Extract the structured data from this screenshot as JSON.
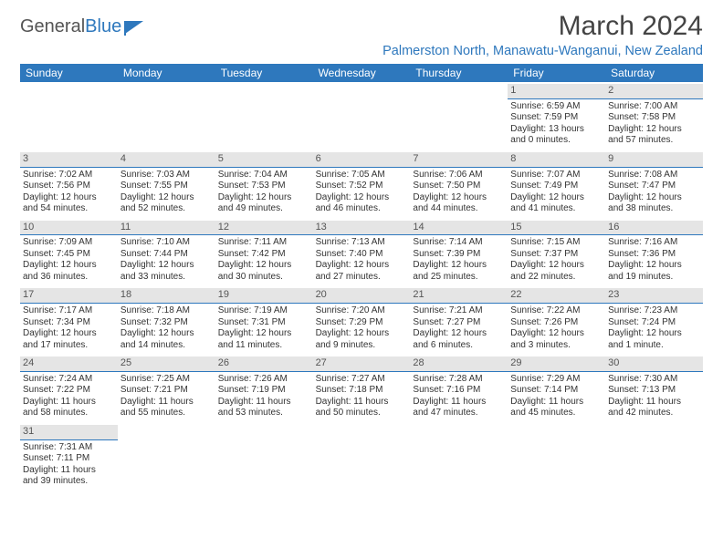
{
  "logo": {
    "word1": "General",
    "word2": "Blue"
  },
  "title": "March 2024",
  "location": "Palmerston North, Manawatu-Wanganui, New Zealand",
  "colors": {
    "brand": "#2e78bd",
    "header_bg": "#2e78bd",
    "header_text": "#ffffff",
    "daynum_bg": "#e5e5e5",
    "text": "#333333",
    "background": "#ffffff"
  },
  "day_names": [
    "Sunday",
    "Monday",
    "Tuesday",
    "Wednesday",
    "Thursday",
    "Friday",
    "Saturday"
  ],
  "weeks": [
    [
      null,
      null,
      null,
      null,
      null,
      {
        "n": "1",
        "sr": "Sunrise: 6:59 AM",
        "ss": "Sunset: 7:59 PM",
        "d1": "Daylight: 13 hours",
        "d2": "and 0 minutes."
      },
      {
        "n": "2",
        "sr": "Sunrise: 7:00 AM",
        "ss": "Sunset: 7:58 PM",
        "d1": "Daylight: 12 hours",
        "d2": "and 57 minutes."
      }
    ],
    [
      {
        "n": "3",
        "sr": "Sunrise: 7:02 AM",
        "ss": "Sunset: 7:56 PM",
        "d1": "Daylight: 12 hours",
        "d2": "and 54 minutes."
      },
      {
        "n": "4",
        "sr": "Sunrise: 7:03 AM",
        "ss": "Sunset: 7:55 PM",
        "d1": "Daylight: 12 hours",
        "d2": "and 52 minutes."
      },
      {
        "n": "5",
        "sr": "Sunrise: 7:04 AM",
        "ss": "Sunset: 7:53 PM",
        "d1": "Daylight: 12 hours",
        "d2": "and 49 minutes."
      },
      {
        "n": "6",
        "sr": "Sunrise: 7:05 AM",
        "ss": "Sunset: 7:52 PM",
        "d1": "Daylight: 12 hours",
        "d2": "and 46 minutes."
      },
      {
        "n": "7",
        "sr": "Sunrise: 7:06 AM",
        "ss": "Sunset: 7:50 PM",
        "d1": "Daylight: 12 hours",
        "d2": "and 44 minutes."
      },
      {
        "n": "8",
        "sr": "Sunrise: 7:07 AM",
        "ss": "Sunset: 7:49 PM",
        "d1": "Daylight: 12 hours",
        "d2": "and 41 minutes."
      },
      {
        "n": "9",
        "sr": "Sunrise: 7:08 AM",
        "ss": "Sunset: 7:47 PM",
        "d1": "Daylight: 12 hours",
        "d2": "and 38 minutes."
      }
    ],
    [
      {
        "n": "10",
        "sr": "Sunrise: 7:09 AM",
        "ss": "Sunset: 7:45 PM",
        "d1": "Daylight: 12 hours",
        "d2": "and 36 minutes."
      },
      {
        "n": "11",
        "sr": "Sunrise: 7:10 AM",
        "ss": "Sunset: 7:44 PM",
        "d1": "Daylight: 12 hours",
        "d2": "and 33 minutes."
      },
      {
        "n": "12",
        "sr": "Sunrise: 7:11 AM",
        "ss": "Sunset: 7:42 PM",
        "d1": "Daylight: 12 hours",
        "d2": "and 30 minutes."
      },
      {
        "n": "13",
        "sr": "Sunrise: 7:13 AM",
        "ss": "Sunset: 7:40 PM",
        "d1": "Daylight: 12 hours",
        "d2": "and 27 minutes."
      },
      {
        "n": "14",
        "sr": "Sunrise: 7:14 AM",
        "ss": "Sunset: 7:39 PM",
        "d1": "Daylight: 12 hours",
        "d2": "and 25 minutes."
      },
      {
        "n": "15",
        "sr": "Sunrise: 7:15 AM",
        "ss": "Sunset: 7:37 PM",
        "d1": "Daylight: 12 hours",
        "d2": "and 22 minutes."
      },
      {
        "n": "16",
        "sr": "Sunrise: 7:16 AM",
        "ss": "Sunset: 7:36 PM",
        "d1": "Daylight: 12 hours",
        "d2": "and 19 minutes."
      }
    ],
    [
      {
        "n": "17",
        "sr": "Sunrise: 7:17 AM",
        "ss": "Sunset: 7:34 PM",
        "d1": "Daylight: 12 hours",
        "d2": "and 17 minutes."
      },
      {
        "n": "18",
        "sr": "Sunrise: 7:18 AM",
        "ss": "Sunset: 7:32 PM",
        "d1": "Daylight: 12 hours",
        "d2": "and 14 minutes."
      },
      {
        "n": "19",
        "sr": "Sunrise: 7:19 AM",
        "ss": "Sunset: 7:31 PM",
        "d1": "Daylight: 12 hours",
        "d2": "and 11 minutes."
      },
      {
        "n": "20",
        "sr": "Sunrise: 7:20 AM",
        "ss": "Sunset: 7:29 PM",
        "d1": "Daylight: 12 hours",
        "d2": "and 9 minutes."
      },
      {
        "n": "21",
        "sr": "Sunrise: 7:21 AM",
        "ss": "Sunset: 7:27 PM",
        "d1": "Daylight: 12 hours",
        "d2": "and 6 minutes."
      },
      {
        "n": "22",
        "sr": "Sunrise: 7:22 AM",
        "ss": "Sunset: 7:26 PM",
        "d1": "Daylight: 12 hours",
        "d2": "and 3 minutes."
      },
      {
        "n": "23",
        "sr": "Sunrise: 7:23 AM",
        "ss": "Sunset: 7:24 PM",
        "d1": "Daylight: 12 hours",
        "d2": "and 1 minute."
      }
    ],
    [
      {
        "n": "24",
        "sr": "Sunrise: 7:24 AM",
        "ss": "Sunset: 7:22 PM",
        "d1": "Daylight: 11 hours",
        "d2": "and 58 minutes."
      },
      {
        "n": "25",
        "sr": "Sunrise: 7:25 AM",
        "ss": "Sunset: 7:21 PM",
        "d1": "Daylight: 11 hours",
        "d2": "and 55 minutes."
      },
      {
        "n": "26",
        "sr": "Sunrise: 7:26 AM",
        "ss": "Sunset: 7:19 PM",
        "d1": "Daylight: 11 hours",
        "d2": "and 53 minutes."
      },
      {
        "n": "27",
        "sr": "Sunrise: 7:27 AM",
        "ss": "Sunset: 7:18 PM",
        "d1": "Daylight: 11 hours",
        "d2": "and 50 minutes."
      },
      {
        "n": "28",
        "sr": "Sunrise: 7:28 AM",
        "ss": "Sunset: 7:16 PM",
        "d1": "Daylight: 11 hours",
        "d2": "and 47 minutes."
      },
      {
        "n": "29",
        "sr": "Sunrise: 7:29 AM",
        "ss": "Sunset: 7:14 PM",
        "d1": "Daylight: 11 hours",
        "d2": "and 45 minutes."
      },
      {
        "n": "30",
        "sr": "Sunrise: 7:30 AM",
        "ss": "Sunset: 7:13 PM",
        "d1": "Daylight: 11 hours",
        "d2": "and 42 minutes."
      }
    ],
    [
      {
        "n": "31",
        "sr": "Sunrise: 7:31 AM",
        "ss": "Sunset: 7:11 PM",
        "d1": "Daylight: 11 hours",
        "d2": "and 39 minutes."
      },
      null,
      null,
      null,
      null,
      null,
      null
    ]
  ]
}
